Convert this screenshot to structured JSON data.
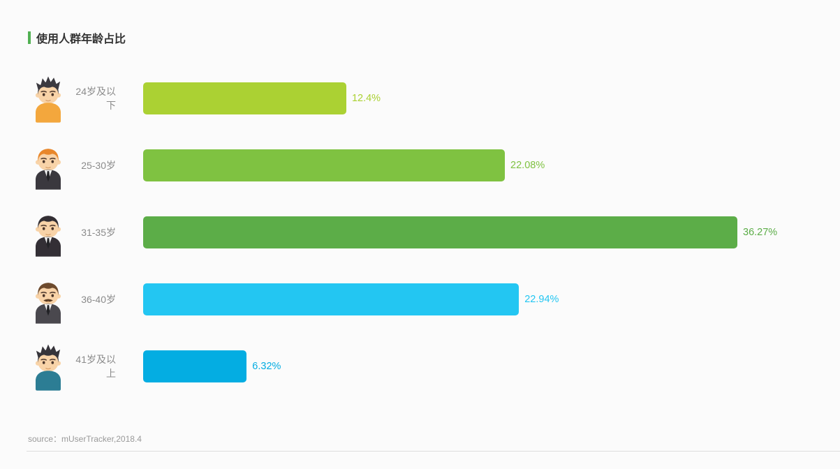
{
  "page": {
    "background_color": "#fbfbfb"
  },
  "header": {
    "title": "使用人群年龄占比",
    "accent_color": "#52b153"
  },
  "footer": {
    "source": "source：mUserTracker,2018.4"
  },
  "chart_data": {
    "type": "bar",
    "orientation": "horizontal",
    "title": "使用人群年龄占比",
    "categories": [
      "24岁及以下",
      "25-30岁",
      "31-35岁",
      "36-40岁",
      "41岁及以上"
    ],
    "values": [
      12.4,
      22.08,
      36.27,
      22.94,
      6.32
    ],
    "value_labels": [
      "12.4%",
      "22.08%",
      "36.27%",
      "22.94%",
      "6.32%"
    ],
    "bar_colors": [
      "#abd133",
      "#7fc241",
      "#5cad48",
      "#23c6f2",
      "#04ade2"
    ],
    "unit": "%",
    "xlim": [
      0,
      36.27
    ],
    "grid": false,
    "legend": "none",
    "source": "mUserTracker,2018.4"
  },
  "rows": [
    {
      "label": "24岁及以下",
      "value_label": "12.4%",
      "color": "#abd133",
      "avatar": {
        "name": "man-24-under",
        "hair": "spiky",
        "outfit": "tshirt",
        "mustache": false,
        "hair_color": "#3b393f",
        "outfit_color": "#f3a73d"
      }
    },
    {
      "label": "25-30岁",
      "value_label": "22.08%",
      "color": "#7fc241",
      "avatar": {
        "name": "man-25-30",
        "hair": "flat",
        "outfit": "suit",
        "mustache": false,
        "hair_color": "#e8872b",
        "outfit_color": "#3a383e"
      }
    },
    {
      "label": "31-35岁",
      "value_label": "36.27%",
      "color": "#5cad48",
      "avatar": {
        "name": "man-31-35",
        "hair": "flat",
        "outfit": "suit",
        "mustache": false,
        "hair_color": "#322e33",
        "outfit_color": "#332f35"
      }
    },
    {
      "label": "36-40岁",
      "value_label": "22.94%",
      "color": "#23c6f2",
      "avatar": {
        "name": "man-36-40",
        "hair": "flat",
        "outfit": "suit",
        "mustache": true,
        "hair_color": "#6d4a2d",
        "outfit_color": "#4a484e"
      }
    },
    {
      "label": "41岁及以上",
      "value_label": "6.32%",
      "color": "#04ade2",
      "avatar": {
        "name": "man-41-plus",
        "hair": "spiky",
        "outfit": "tshirt",
        "mustache": false,
        "hair_color": "#36343a",
        "outfit_color": "#2c7d94"
      }
    }
  ]
}
